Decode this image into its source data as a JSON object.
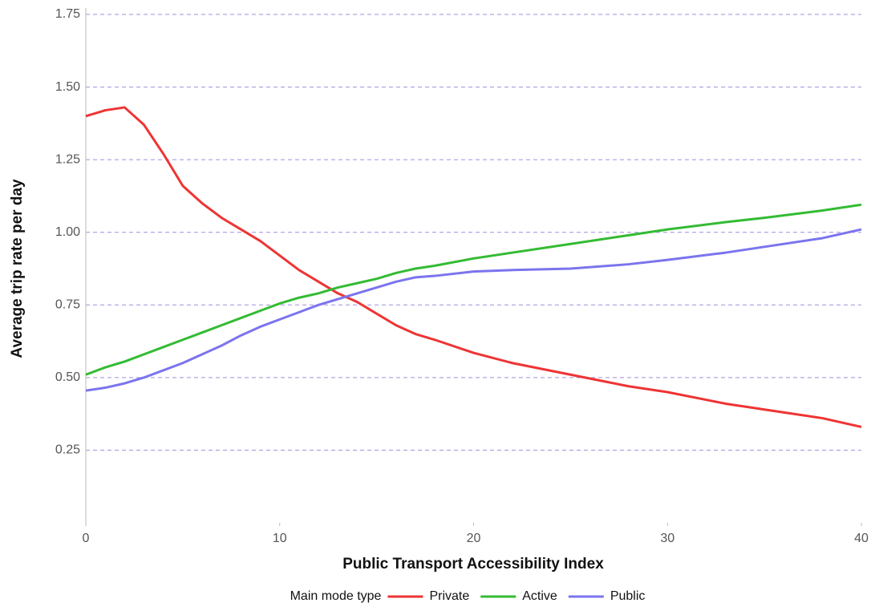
{
  "chart_data": {
    "type": "line",
    "xlabel": "Public Transport Accessibility Index",
    "ylabel": "Average trip rate per day",
    "legend_title": "Main mode type",
    "legend": "bottom",
    "grid": true,
    "x": [
      0,
      1,
      2,
      3,
      4,
      5,
      6,
      7,
      8,
      9,
      10,
      11,
      12,
      13,
      14,
      15,
      16,
      17,
      18,
      20,
      22,
      25,
      28,
      30,
      33,
      35,
      38,
      40
    ],
    "series": [
      {
        "name": "Private",
        "color": "#ee3434",
        "values": [
          1.4,
          1.42,
          1.43,
          1.37,
          1.27,
          1.16,
          1.1,
          1.05,
          1.01,
          0.97,
          0.92,
          0.87,
          0.83,
          0.79,
          0.76,
          0.72,
          0.68,
          0.65,
          0.63,
          0.585,
          0.55,
          0.51,
          0.47,
          0.45,
          0.41,
          0.39,
          0.36,
          0.33
        ]
      },
      {
        "name": "Active",
        "color": "#33bb33",
        "values": [
          0.51,
          0.535,
          0.555,
          0.58,
          0.605,
          0.63,
          0.655,
          0.68,
          0.705,
          0.73,
          0.755,
          0.775,
          0.79,
          0.81,
          0.825,
          0.84,
          0.86,
          0.875,
          0.885,
          0.91,
          0.93,
          0.96,
          0.99,
          1.01,
          1.035,
          1.05,
          1.075,
          1.095
        ]
      },
      {
        "name": "Public",
        "color": "#7b74ee",
        "values": [
          0.455,
          0.465,
          0.48,
          0.5,
          0.525,
          0.55,
          0.58,
          0.61,
          0.645,
          0.675,
          0.7,
          0.725,
          0.75,
          0.77,
          0.79,
          0.81,
          0.83,
          0.845,
          0.85,
          0.865,
          0.87,
          0.875,
          0.89,
          0.905,
          0.93,
          0.95,
          0.98,
          1.01
        ]
      }
    ],
    "xlim": [
      0,
      40
    ],
    "xticks": [
      0,
      10,
      20,
      30,
      40
    ],
    "ylim": [
      0,
      1.75
    ],
    "yticks": [
      0.25,
      {
        "value": 0.5,
        "label": "0.50"
      },
      0.75,
      {
        "value": 1.0,
        "label": "1.00"
      },
      1.25,
      {
        "value": 1.5,
        "label": "1.50"
      },
      1.75
    ]
  }
}
